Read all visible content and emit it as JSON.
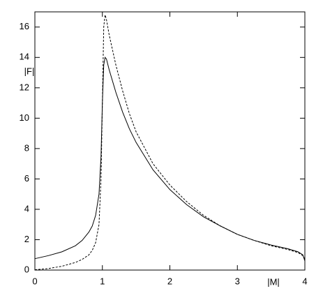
{
  "chart_data": {
    "type": "line",
    "x_label": "|M|",
    "y_label": "|F|",
    "x": [
      0,
      0.2,
      0.4,
      0.6,
      0.7,
      0.8,
      0.85,
      0.9,
      0.95,
      0.98,
      1.0,
      1.02,
      1.04,
      1.06,
      1.1,
      1.2,
      1.3,
      1.4,
      1.5,
      1.75,
      2,
      2.25,
      2.5,
      2.75,
      3,
      3.25,
      3.5,
      3.75,
      3.9,
      3.97,
      4
    ],
    "series": [
      {
        "color": "#000000",
        "dashed": false,
        "values": [
          0.75,
          0.95,
          1.2,
          1.6,
          1.95,
          2.5,
          2.9,
          3.6,
          5,
          7.5,
          11,
          13.5,
          14,
          13.9,
          13.2,
          11.7,
          10.4,
          9.3,
          8.4,
          6.6,
          5.3,
          4.3,
          3.5,
          2.9,
          2.35,
          1.95,
          1.65,
          1.4,
          1.2,
          1.0,
          0.6
        ]
      },
      {
        "color": "#000000",
        "dashed": true,
        "values": [
          0.02,
          0.1,
          0.25,
          0.5,
          0.7,
          1.0,
          1.3,
          1.8,
          3,
          6,
          11,
          16,
          16.8,
          16.5,
          15.5,
          13.5,
          11.8,
          10.3,
          9.1,
          7,
          5.6,
          4.5,
          3.6,
          2.9,
          2.35,
          1.95,
          1.6,
          1.35,
          1.15,
          0.95,
          0.7
        ]
      }
    ],
    "xlim": [
      0,
      4
    ],
    "xticks": [
      0,
      1,
      2,
      3,
      4
    ],
    "ylim": [
      0,
      17
    ],
    "yticks": [
      0,
      2,
      4,
      6,
      8,
      10,
      12,
      14,
      16
    ]
  }
}
